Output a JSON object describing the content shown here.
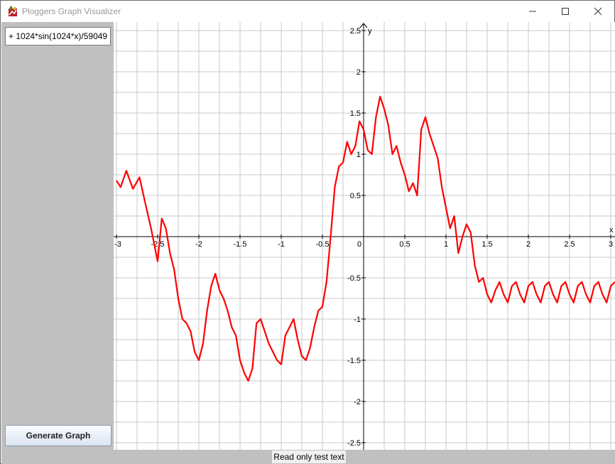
{
  "window": {
    "title": "Ploggers Graph Visualizer",
    "controls": {
      "minimize": "minimize-icon",
      "maximize": "maximize-icon",
      "close": "close-icon"
    }
  },
  "sidebar": {
    "expression_value": "+ 1024*sin(1024*x)/59049",
    "generate_label": "Generate Graph"
  },
  "status": {
    "text": "Read only test text"
  },
  "colors": {
    "curve": "#ff0000",
    "grid": "#c8c8c8",
    "axes": "#000000",
    "sidebar": "#c0c0c0"
  },
  "chart_data": {
    "type": "line",
    "xlabel": "x",
    "ylabel": "y",
    "xlim": [
      -3,
      3.05
    ],
    "ylim": [
      -2.56,
      2.6
    ],
    "grid": true,
    "x_ticks": [
      -3,
      -2.5,
      -2,
      -1.5,
      -1,
      -0.5,
      0,
      0.5,
      1,
      1.5,
      2,
      2.5,
      3
    ],
    "x_tick_labels": [
      "-3",
      "-2.5",
      "-2",
      "-1.5",
      "-1",
      "-0.5",
      "0",
      "0.5",
      "1",
      "1.5",
      "2",
      "2.5",
      "3"
    ],
    "y_ticks": [
      2.5,
      2,
      1.5,
      1,
      0.5,
      -0.5,
      -1,
      -1.5,
      -2,
      -2.5
    ],
    "y_tick_labels": [
      "2.5",
      "2",
      "1.5",
      "1",
      "0.5",
      "-0.5",
      "-1",
      "-1.5",
      "-2",
      "-2.5"
    ],
    "series": [
      {
        "color": "#ff0000",
        "x": [
          -3.0,
          -2.95,
          -2.88,
          -2.8,
          -2.72,
          -2.66,
          -2.58,
          -2.5,
          -2.45,
          -2.4,
          -2.35,
          -2.3,
          -2.25,
          -2.2,
          -2.15,
          -2.1,
          -2.05,
          -2.0,
          -1.95,
          -1.9,
          -1.85,
          -1.8,
          -1.75,
          -1.7,
          -1.65,
          -1.6,
          -1.55,
          -1.5,
          -1.45,
          -1.4,
          -1.35,
          -1.3,
          -1.25,
          -1.2,
          -1.15,
          -1.1,
          -1.05,
          -1.0,
          -0.95,
          -0.9,
          -0.85,
          -0.8,
          -0.75,
          -0.7,
          -0.65,
          -0.6,
          -0.55,
          -0.5,
          -0.45,
          -0.4,
          -0.35,
          -0.3,
          -0.25,
          -0.2,
          -0.15,
          -0.1,
          -0.05,
          0.0,
          0.05,
          0.1,
          0.15,
          0.2,
          0.25,
          0.3,
          0.35,
          0.4,
          0.45,
          0.5,
          0.55,
          0.6,
          0.65,
          0.7,
          0.75,
          0.8,
          0.85,
          0.9,
          0.95,
          1.0,
          1.05,
          1.1,
          1.15,
          1.2,
          1.25,
          1.3,
          1.35,
          1.4,
          1.45,
          1.5,
          1.55,
          1.6,
          1.65,
          1.7,
          1.75,
          1.8,
          1.85,
          1.9,
          1.95,
          2.0,
          2.05,
          2.1,
          2.15,
          2.2,
          2.25,
          2.3,
          2.35,
          2.4,
          2.45,
          2.5,
          2.55,
          2.6,
          2.65,
          2.7,
          2.75,
          2.8,
          2.85,
          2.9,
          2.95,
          3.0,
          3.05
        ],
        "y": [
          0.68,
          0.6,
          0.8,
          0.58,
          0.72,
          0.45,
          0.1,
          -0.3,
          0.22,
          0.1,
          -0.2,
          -0.4,
          -0.75,
          -1.0,
          -1.05,
          -1.15,
          -1.4,
          -1.5,
          -1.3,
          -0.9,
          -0.6,
          -0.45,
          -0.65,
          -0.75,
          -0.9,
          -1.1,
          -1.2,
          -1.5,
          -1.65,
          -1.75,
          -1.6,
          -1.05,
          -1.0,
          -1.15,
          -1.3,
          -1.4,
          -1.5,
          -1.55,
          -1.2,
          -1.1,
          -1.0,
          -1.25,
          -1.45,
          -1.5,
          -1.35,
          -1.1,
          -0.9,
          -0.85,
          -0.55,
          0.0,
          0.6,
          0.85,
          0.9,
          1.15,
          1.0,
          1.1,
          1.4,
          1.3,
          1.05,
          1.0,
          1.45,
          1.7,
          1.55,
          1.35,
          1.0,
          1.1,
          0.9,
          0.75,
          0.55,
          0.65,
          0.5,
          1.3,
          1.45,
          1.25,
          1.1,
          0.95,
          0.6,
          0.35,
          0.1,
          0.25,
          -0.2,
          0.0,
          0.15,
          0.05,
          -0.35,
          -0.55,
          -0.5,
          -0.7,
          -0.8,
          -0.65,
          -0.55,
          -0.7,
          -0.8,
          -0.6,
          -0.55,
          -0.7,
          -0.8,
          -0.6,
          -0.55,
          -0.7,
          -0.8,
          -0.6,
          -0.55,
          -0.7,
          -0.8,
          -0.6,
          -0.55,
          -0.7,
          -0.8,
          -0.6,
          -0.55,
          -0.7,
          -0.8,
          -0.6,
          -0.55,
          -0.7,
          -0.8,
          -0.6,
          -0.55
        ]
      }
    ]
  }
}
